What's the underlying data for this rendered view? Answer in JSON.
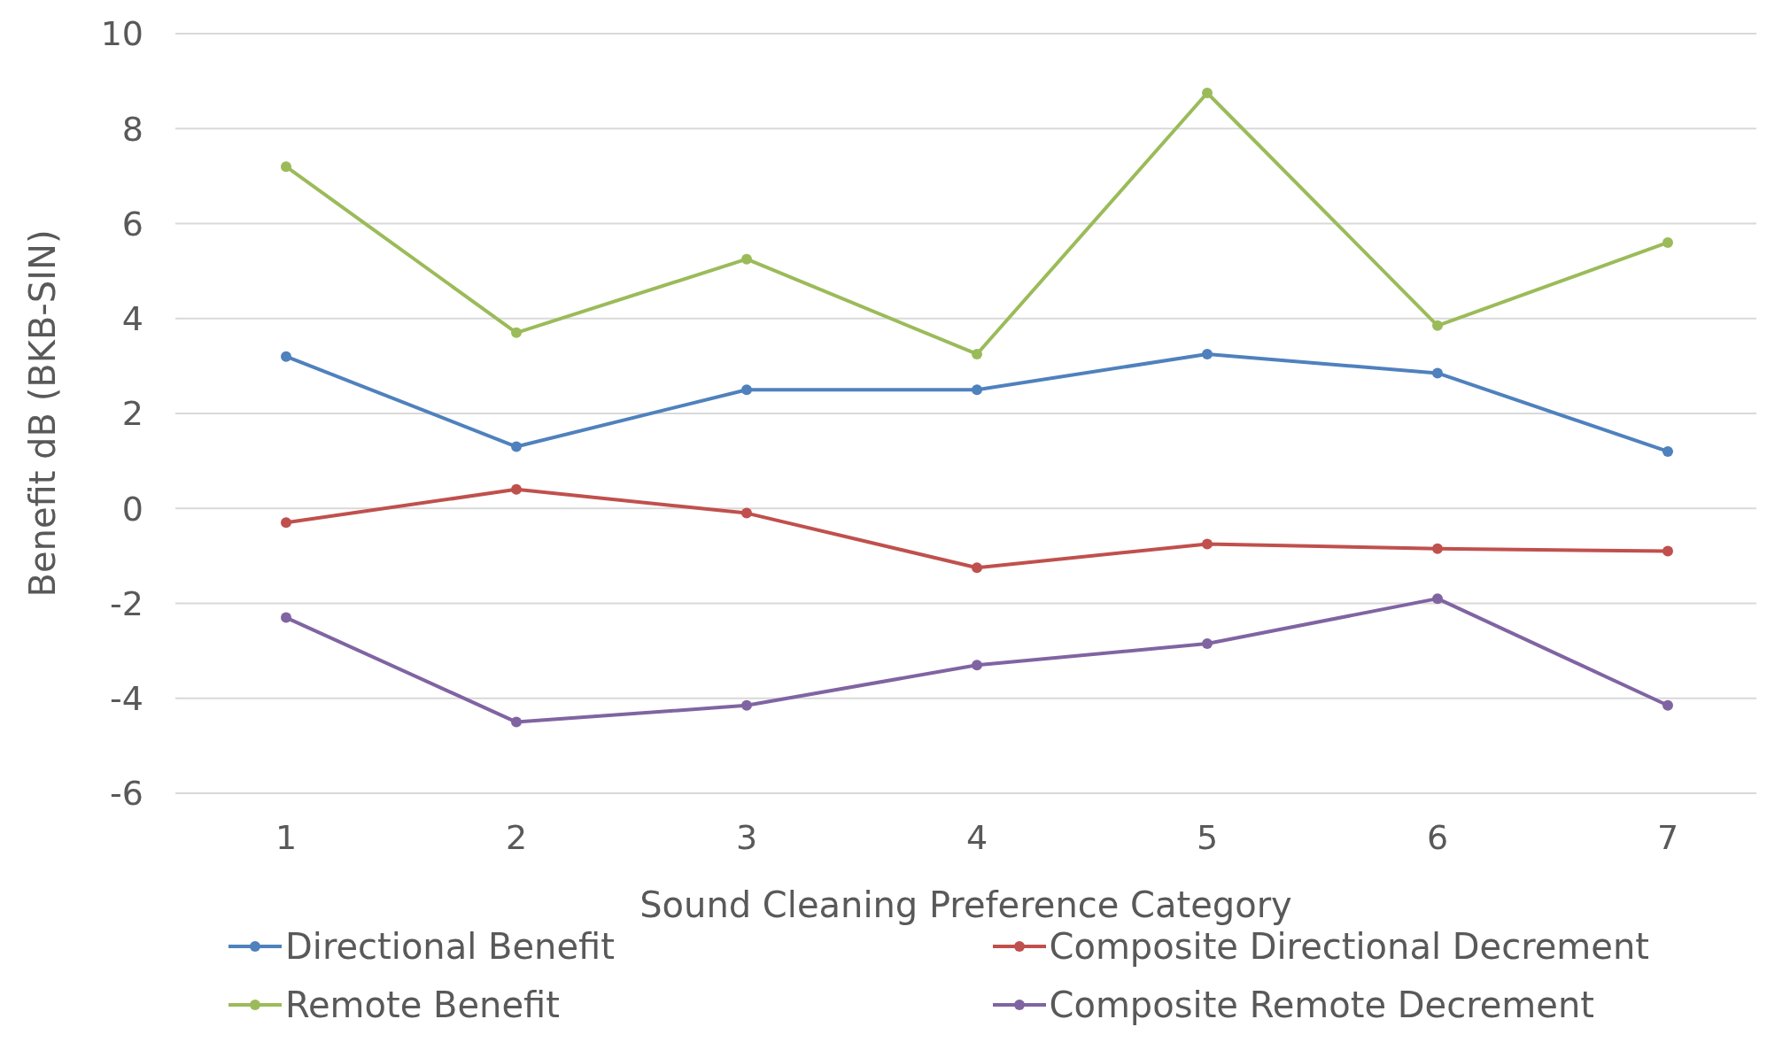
{
  "chart_data": {
    "type": "line",
    "xlabel": "Sound Cleaning Preference Category",
    "ylabel": "Benefit dB (BKB-SIN)",
    "categories": [
      "1",
      "2",
      "3",
      "4",
      "5",
      "6",
      "7"
    ],
    "series": [
      {
        "name": "Directional Benefit",
        "color": "#4f81bd",
        "values": [
          3.2,
          1.3,
          2.5,
          2.5,
          3.25,
          2.85,
          1.2
        ]
      },
      {
        "name": "Composite Directional Decrement",
        "color": "#c0504d",
        "values": [
          -0.3,
          0.4,
          -0.1,
          -1.25,
          -0.75,
          -0.85,
          -0.9
        ]
      },
      {
        "name": "Remote Benefit",
        "color": "#9bbb59",
        "values": [
          7.2,
          3.7,
          5.25,
          3.25,
          8.75,
          3.85,
          5.6
        ]
      },
      {
        "name": "Composite Remote Decrement",
        "color": "#8064a2",
        "values": [
          -2.3,
          -4.5,
          -4.15,
          -3.3,
          -2.85,
          -1.9,
          -4.15
        ]
      }
    ],
    "ylim": [
      -6,
      10
    ],
    "yticks": [
      -6,
      -4,
      -2,
      0,
      2,
      4,
      6,
      8,
      10
    ],
    "grid": "y",
    "legend": "bottom",
    "marker": "circle",
    "line_style": "solid"
  }
}
